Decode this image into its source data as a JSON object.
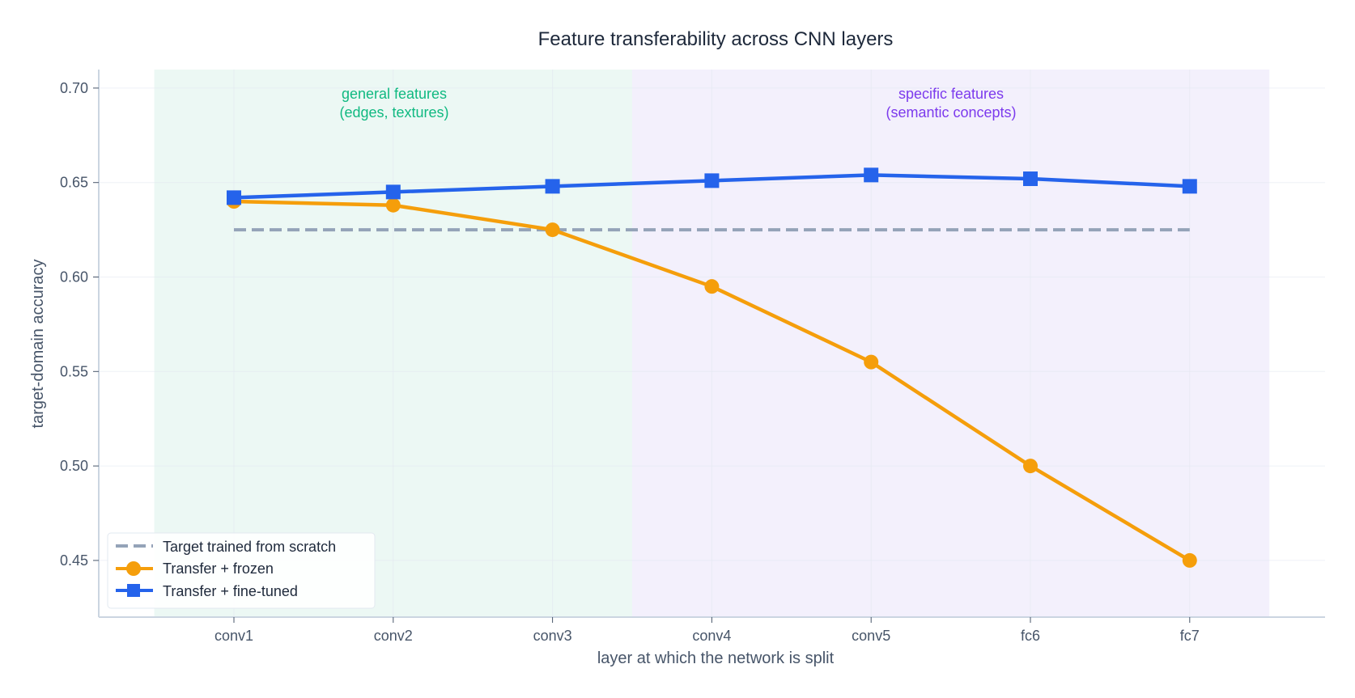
{
  "chart_data": {
    "type": "line",
    "title": "Feature transferability across CNN layers",
    "xlabel": "layer at which the network is split",
    "ylabel": "target-domain accuracy",
    "categories": [
      "conv1",
      "conv2",
      "conv3",
      "conv4",
      "conv5",
      "fc6",
      "fc7"
    ],
    "ylim": [
      0.42,
      0.71
    ],
    "yticks": [
      0.45,
      0.5,
      0.55,
      0.6,
      0.65,
      0.7
    ],
    "ytick_labels": [
      "0.45",
      "0.50",
      "0.55",
      "0.60",
      "0.65",
      "0.70"
    ],
    "grid": true,
    "legend_position": "lower left",
    "series": [
      {
        "name": "Target trained from scratch",
        "style": "dashed",
        "marker": "none",
        "color": "#94a3b8",
        "values": [
          0.625,
          0.625,
          0.625,
          0.625,
          0.625,
          0.625,
          0.625
        ]
      },
      {
        "name": "Transfer + frozen",
        "style": "solid",
        "marker": "circle",
        "color": "#f59e0b",
        "values": [
          0.64,
          0.638,
          0.625,
          0.595,
          0.555,
          0.5,
          0.45
        ]
      },
      {
        "name": "Transfer + fine-tuned",
        "style": "solid",
        "marker": "square",
        "color": "#2563eb",
        "values": [
          0.642,
          0.645,
          0.648,
          0.651,
          0.654,
          0.652,
          0.648
        ]
      }
    ],
    "regions": [
      {
        "label_line1": "general features",
        "label_line2": "(edges, textures)",
        "x_from": -0.5,
        "x_to": 2.5,
        "color": "#10b981",
        "fill": "#ecf8f4"
      },
      {
        "label_line1": "specific features",
        "label_line2": "(semantic concepts)",
        "x_from": 2.5,
        "x_to": 6.5,
        "color": "#7c3aed",
        "fill": "#f3f0fc"
      }
    ]
  }
}
